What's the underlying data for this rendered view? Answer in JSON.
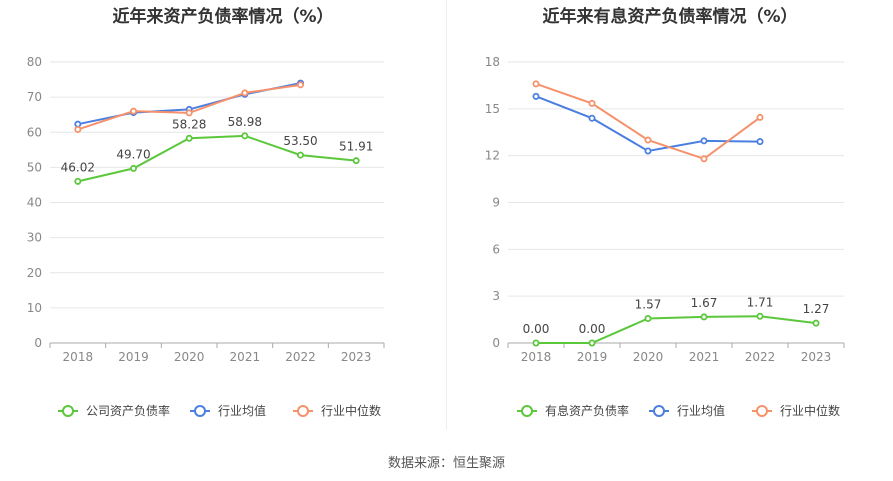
{
  "source": "数据来源：恒生聚源",
  "colors": {
    "green": "#5bc73a",
    "blue": "#4a7ee0",
    "orange": "#f5916b",
    "grid": "#e6e6e6",
    "axis": "#888888"
  },
  "chart_data": [
    {
      "type": "line",
      "title": "近年来资产负债率情况（%）",
      "categories": [
        "2018",
        "2019",
        "2020",
        "2021",
        "2022",
        "2023"
      ],
      "ylim": [
        0,
        80
      ],
      "yticks": [
        0,
        10,
        20,
        30,
        40,
        50,
        60,
        70,
        80
      ],
      "series": [
        {
          "name": "公司资产负债率",
          "color": "#5bc73a",
          "values": [
            46.02,
            49.7,
            58.28,
            58.98,
            53.5,
            51.91
          ],
          "labels": [
            "46.02",
            "49.70",
            "58.28",
            "58.98",
            "53.50",
            "51.91"
          ]
        },
        {
          "name": "行业均值",
          "color": "#4a7ee0",
          "values": [
            62.3,
            65.6,
            66.5,
            70.8,
            74.0,
            null
          ]
        },
        {
          "name": "行业中位数",
          "color": "#f5916b",
          "values": [
            60.8,
            66.0,
            65.5,
            71.2,
            73.5,
            null
          ]
        }
      ]
    },
    {
      "type": "line",
      "title": "近年来有息资产负债率情况（%）",
      "categories": [
        "2018",
        "2019",
        "2020",
        "2021",
        "2022",
        "2023"
      ],
      "ylim": [
        0,
        18
      ],
      "yticks": [
        0,
        3,
        6,
        9,
        12,
        15,
        18
      ],
      "series": [
        {
          "name": "有息资产负债率",
          "color": "#5bc73a",
          "values": [
            0.0,
            0.0,
            1.57,
            1.67,
            1.71,
            1.27
          ],
          "labels": [
            "0.00",
            "0.00",
            "1.57",
            "1.67",
            "1.71",
            "1.27"
          ]
        },
        {
          "name": "行业均值",
          "color": "#4a7ee0",
          "values": [
            15.8,
            14.4,
            12.3,
            12.95,
            12.9,
            null
          ]
        },
        {
          "name": "行业中位数",
          "color": "#f5916b",
          "values": [
            16.6,
            15.35,
            13.0,
            11.8,
            14.45,
            null
          ]
        }
      ]
    }
  ]
}
